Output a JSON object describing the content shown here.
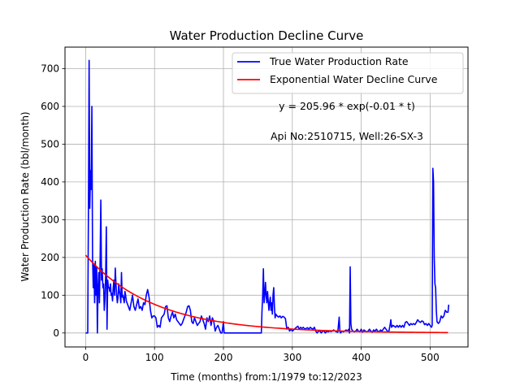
{
  "chart_data": {
    "type": "line",
    "title": "Water Production Decline Curve",
    "xlabel": "Time (months) from:1/1979 to:12/2023",
    "ylabel": "Water Production Rate (bbl/month)",
    "xlim": [
      -30,
      555
    ],
    "ylim": [
      -37,
      757
    ],
    "x_ticks": [
      0,
      100,
      200,
      300,
      400,
      500
    ],
    "y_ticks": [
      0,
      100,
      200,
      300,
      400,
      500,
      600,
      700
    ],
    "grid": true,
    "legend_position": "top-right",
    "annotations": [
      "y = 205.96 * exp(-0.01 * t)",
      "Api No:2510715, Well:26-SX-3"
    ],
    "series": [
      {
        "name": "True Water Production Rate",
        "color": "#0000ff",
        "points": [
          [
            0,
            0
          ],
          [
            1,
            0
          ],
          [
            2,
            0
          ],
          [
            3,
            0
          ],
          [
            4,
            320
          ],
          [
            5,
            722
          ],
          [
            6,
            330
          ],
          [
            7,
            430
          ],
          [
            8,
            380
          ],
          [
            9,
            600
          ],
          [
            10,
            200
          ],
          [
            11,
            120
          ],
          [
            12,
            180
          ],
          [
            13,
            80
          ],
          [
            14,
            190
          ],
          [
            15,
            100
          ],
          [
            16,
            175
          ],
          [
            17,
            0
          ],
          [
            18,
            120
          ],
          [
            19,
            160
          ],
          [
            20,
            80
          ],
          [
            21,
            195
          ],
          [
            22,
            352
          ],
          [
            23,
            140
          ],
          [
            24,
            170
          ],
          [
            25,
            120
          ],
          [
            26,
            130
          ],
          [
            27,
            60
          ],
          [
            28,
            90
          ],
          [
            29,
            150
          ],
          [
            30,
            281
          ],
          [
            31,
            10
          ],
          [
            32,
            140
          ],
          [
            33,
            120
          ],
          [
            34,
            120
          ],
          [
            35,
            110
          ],
          [
            36,
            130
          ],
          [
            37,
            100
          ],
          [
            38,
            105
          ],
          [
            39,
            85
          ],
          [
            40,
            120
          ],
          [
            41,
            140
          ],
          [
            42,
            100
          ],
          [
            43,
            172
          ],
          [
            44,
            130
          ],
          [
            45,
            100
          ],
          [
            46,
            80
          ],
          [
            47,
            95
          ],
          [
            48,
            130
          ],
          [
            49,
            110
          ],
          [
            50,
            100
          ],
          [
            51,
            80
          ],
          [
            52,
            160
          ],
          [
            53,
            95
          ],
          [
            54,
            100
          ],
          [
            55,
            90
          ],
          [
            56,
            80
          ],
          [
            57,
            110
          ],
          [
            58,
            100
          ],
          [
            59,
            85
          ],
          [
            60,
            80
          ],
          [
            62,
            70
          ],
          [
            64,
            60
          ],
          [
            66,
            80
          ],
          [
            68,
            100
          ],
          [
            70,
            70
          ],
          [
            72,
            60
          ],
          [
            74,
            75
          ],
          [
            76,
            90
          ],
          [
            78,
            65
          ],
          [
            80,
            70
          ],
          [
            82,
            60
          ],
          [
            84,
            80
          ],
          [
            86,
            75
          ],
          [
            88,
            100
          ],
          [
            90,
            115
          ],
          [
            92,
            95
          ],
          [
            94,
            60
          ],
          [
            96,
            40
          ],
          [
            98,
            45
          ],
          [
            100,
            45
          ],
          [
            102,
            40
          ],
          [
            104,
            15
          ],
          [
            106,
            20
          ],
          [
            108,
            15
          ],
          [
            110,
            40
          ],
          [
            112,
            45
          ],
          [
            114,
            50
          ],
          [
            116,
            70
          ],
          [
            118,
            72
          ],
          [
            120,
            40
          ],
          [
            122,
            30
          ],
          [
            124,
            45
          ],
          [
            126,
            55
          ],
          [
            128,
            40
          ],
          [
            130,
            50
          ],
          [
            132,
            35
          ],
          [
            134,
            30
          ],
          [
            136,
            25
          ],
          [
            138,
            20
          ],
          [
            140,
            25
          ],
          [
            142,
            35
          ],
          [
            144,
            45
          ],
          [
            146,
            55
          ],
          [
            148,
            70
          ],
          [
            150,
            72
          ],
          [
            152,
            60
          ],
          [
            154,
            30
          ],
          [
            156,
            25
          ],
          [
            158,
            40
          ],
          [
            160,
            30
          ],
          [
            162,
            20
          ],
          [
            164,
            25
          ],
          [
            166,
            30
          ],
          [
            168,
            45
          ],
          [
            170,
            35
          ],
          [
            172,
            25
          ],
          [
            174,
            10
          ],
          [
            176,
            40
          ],
          [
            178,
            30
          ],
          [
            180,
            45
          ],
          [
            182,
            20
          ],
          [
            184,
            40
          ],
          [
            186,
            30
          ],
          [
            188,
            5
          ],
          [
            190,
            15
          ],
          [
            192,
            20
          ],
          [
            194,
            10
          ],
          [
            196,
            0
          ],
          [
            198,
            0
          ],
          [
            200,
            30
          ],
          [
            201,
            0
          ],
          [
            210,
            0
          ],
          [
            220,
            0
          ],
          [
            230,
            0
          ],
          [
            240,
            0
          ],
          [
            250,
            0
          ],
          [
            255,
            0
          ],
          [
            256,
            60
          ],
          [
            257,
            100
          ],
          [
            258,
            170
          ],
          [
            259,
            80
          ],
          [
            260,
            100
          ],
          [
            261,
            134
          ],
          [
            262,
            100
          ],
          [
            263,
            80
          ],
          [
            264,
            110
          ],
          [
            265,
            85
          ],
          [
            266,
            60
          ],
          [
            267,
            80
          ],
          [
            268,
            95
          ],
          [
            269,
            60
          ],
          [
            270,
            80
          ],
          [
            271,
            50
          ],
          [
            272,
            100
          ],
          [
            273,
            120
          ],
          [
            274,
            70
          ],
          [
            275,
            40
          ],
          [
            276,
            50
          ],
          [
            278,
            45
          ],
          [
            280,
            42
          ],
          [
            282,
            45
          ],
          [
            284,
            40
          ],
          [
            286,
            44
          ],
          [
            288,
            42
          ],
          [
            290,
            38
          ],
          [
            292,
            10
          ],
          [
            294,
            15
          ],
          [
            296,
            5
          ],
          [
            298,
            10
          ],
          [
            300,
            5
          ],
          [
            302,
            8
          ],
          [
            304,
            12
          ],
          [
            306,
            15
          ],
          [
            308,
            18
          ],
          [
            310,
            10
          ],
          [
            312,
            15
          ],
          [
            314,
            12
          ],
          [
            316,
            15
          ],
          [
            318,
            10
          ],
          [
            320,
            12
          ],
          [
            322,
            14
          ],
          [
            324,
            10
          ],
          [
            326,
            15
          ],
          [
            328,
            12
          ],
          [
            330,
            10
          ],
          [
            332,
            15
          ],
          [
            334,
            5
          ],
          [
            336,
            0
          ],
          [
            338,
            5
          ],
          [
            340,
            5
          ],
          [
            342,
            0
          ],
          [
            344,
            5
          ],
          [
            346,
            5
          ],
          [
            348,
            0
          ],
          [
            350,
            5
          ],
          [
            352,
            3
          ],
          [
            354,
            5
          ],
          [
            356,
            4
          ],
          [
            358,
            5
          ],
          [
            360,
            8
          ],
          [
            362,
            5
          ],
          [
            364,
            3
          ],
          [
            366,
            2
          ],
          [
            368,
            42
          ],
          [
            369,
            5
          ],
          [
            370,
            0
          ],
          [
            372,
            5
          ],
          [
            374,
            3
          ],
          [
            376,
            5
          ],
          [
            378,
            8
          ],
          [
            380,
            5
          ],
          [
            382,
            10
          ],
          [
            383,
            0
          ],
          [
            384,
            175
          ],
          [
            385,
            25
          ],
          [
            386,
            10
          ],
          [
            388,
            5
          ],
          [
            390,
            3
          ],
          [
            392,
            5
          ],
          [
            394,
            10
          ],
          [
            396,
            5
          ],
          [
            398,
            3
          ],
          [
            400,
            10
          ],
          [
            402,
            2
          ],
          [
            404,
            8
          ],
          [
            406,
            5
          ],
          [
            408,
            3
          ],
          [
            410,
            5
          ],
          [
            412,
            10
          ],
          [
            414,
            5
          ],
          [
            416,
            2
          ],
          [
            418,
            8
          ],
          [
            420,
            5
          ],
          [
            422,
            10
          ],
          [
            424,
            5
          ],
          [
            426,
            3
          ],
          [
            428,
            8
          ],
          [
            430,
            5
          ],
          [
            432,
            10
          ],
          [
            434,
            15
          ],
          [
            436,
            10
          ],
          [
            438,
            5
          ],
          [
            440,
            3
          ],
          [
            442,
            22
          ],
          [
            443,
            35
          ],
          [
            444,
            15
          ],
          [
            446,
            20
          ],
          [
            448,
            18
          ],
          [
            450,
            15
          ],
          [
            452,
            20
          ],
          [
            454,
            15
          ],
          [
            456,
            20
          ],
          [
            458,
            15
          ],
          [
            460,
            20
          ],
          [
            462,
            15
          ],
          [
            464,
            28
          ],
          [
            466,
            30
          ],
          [
            468,
            25
          ],
          [
            470,
            20
          ],
          [
            472,
            25
          ],
          [
            474,
            22
          ],
          [
            476,
            25
          ],
          [
            478,
            22
          ],
          [
            480,
            28
          ],
          [
            482,
            35
          ],
          [
            484,
            30
          ],
          [
            486,
            28
          ],
          [
            488,
            32
          ],
          [
            490,
            30
          ],
          [
            492,
            22
          ],
          [
            494,
            25
          ],
          [
            496,
            20
          ],
          [
            498,
            25
          ],
          [
            500,
            20
          ],
          [
            502,
            15
          ],
          [
            503,
            20
          ],
          [
            504,
            436
          ],
          [
            505,
            400
          ],
          [
            506,
            200
          ],
          [
            507,
            130
          ],
          [
            508,
            120
          ],
          [
            509,
            60
          ],
          [
            510,
            30
          ],
          [
            512,
            25
          ],
          [
            514,
            30
          ],
          [
            516,
            45
          ],
          [
            518,
            40
          ],
          [
            520,
            45
          ],
          [
            522,
            60
          ],
          [
            524,
            55
          ],
          [
            526,
            55
          ],
          [
            527,
            75
          ]
        ]
      },
      {
        "name": "Exponential Water Decline Curve",
        "color": "#ff0000",
        "model": {
          "a": 205.96,
          "b": 0.01
        },
        "x_range": [
          0,
          527
        ]
      }
    ]
  }
}
